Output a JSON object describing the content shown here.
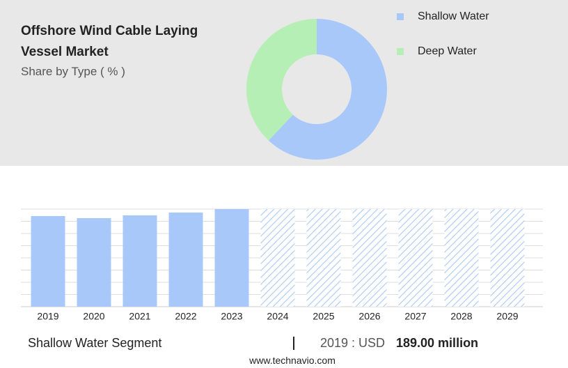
{
  "chart_data": [
    {
      "type": "pie",
      "title": "Offshore Wind Cable Laying Vessel Market",
      "subtitle": "Share by Type ( % )",
      "categories": [
        "Shallow Water",
        "Deep Water"
      ],
      "values": [
        62,
        38
      ],
      "colors": [
        "#a8c8fa",
        "#b6efb5"
      ]
    },
    {
      "type": "bar",
      "categories": [
        "2019",
        "2020",
        "2021",
        "2022",
        "2023",
        "2024",
        "2025",
        "2026",
        "2027",
        "2028",
        "2029"
      ],
      "values": [
        189,
        184.6,
        190.5,
        196.3,
        203.5,
        null,
        null,
        null,
        null,
        null,
        null
      ],
      "color": "#a8c8fa",
      "ylim": [
        0,
        203.5
      ]
    }
  ],
  "footer": {
    "segment": "Shallow Water Segment",
    "year_label": "2019 : USD",
    "value": "189.00 million",
    "website": "www.technavio.com"
  }
}
